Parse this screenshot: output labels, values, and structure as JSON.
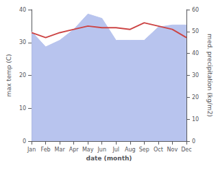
{
  "chart_data": {
    "type": "line",
    "xlabel": "date (month)",
    "ylabel": "max temp (C)",
    "y2label": "med. precipitation (kg/m2)",
    "categories": [
      "Jan",
      "Feb",
      "Mar",
      "Apr",
      "May",
      "Jun",
      "Jul",
      "Aug",
      "Sep",
      "Oct",
      "Nov",
      "Dec"
    ],
    "series": [
      {
        "type": "area",
        "axis": "y2",
        "color": "#b8c4ee",
        "values": [
          50.0,
          43.0,
          46.0,
          51.0,
          58.0,
          56.0,
          46.0,
          46.0,
          46.0,
          52.0,
          53.0,
          53.0
        ]
      },
      {
        "type": "line",
        "color": "#cc4444",
        "values": [
          33.0,
          31.5,
          33.0,
          34.0,
          35.0,
          34.5,
          34.5,
          34.0,
          36.0,
          35.0,
          34.0,
          31.5
        ]
      }
    ],
    "ylim": [
      0,
      40
    ],
    "yticks": [
      0,
      10,
      20,
      30,
      40
    ],
    "y2lim": [
      0,
      60
    ],
    "y2ticks": [
      0,
      10,
      20,
      30,
      40,
      50,
      60
    ],
    "grid": false
  }
}
